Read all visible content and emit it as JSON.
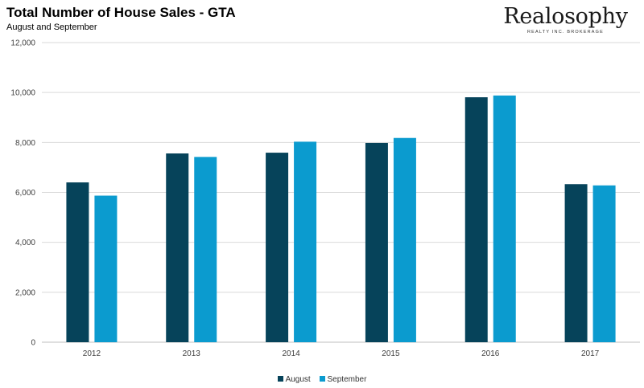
{
  "chart_data": {
    "type": "bar",
    "title": "Total Number of House Sales - GTA",
    "subtitle": "August and September",
    "categories": [
      "2012",
      "2013",
      "2014",
      "2015",
      "2016",
      "2017"
    ],
    "series": [
      {
        "name": "August",
        "color": "#06435a",
        "values": [
          6400,
          7560,
          7590,
          7980,
          9810,
          6330
        ]
      },
      {
        "name": "September",
        "color": "#0b9bcf",
        "values": [
          5870,
          7420,
          8030,
          8180,
          9880,
          6280
        ]
      }
    ],
    "ylim": [
      0,
      12000
    ],
    "yticks": [
      0,
      2000,
      4000,
      6000,
      8000,
      10000,
      12000
    ],
    "ytick_labels": [
      "0",
      "2,000",
      "4,000",
      "6,000",
      "8,000",
      "10,000",
      "12,000"
    ],
    "xlabel": "",
    "ylabel": "",
    "grid": true,
    "legend_position": "bottom-center"
  },
  "logo": {
    "name": "Realosophy",
    "tagline": "REALTY INC. BROKERAGE"
  }
}
